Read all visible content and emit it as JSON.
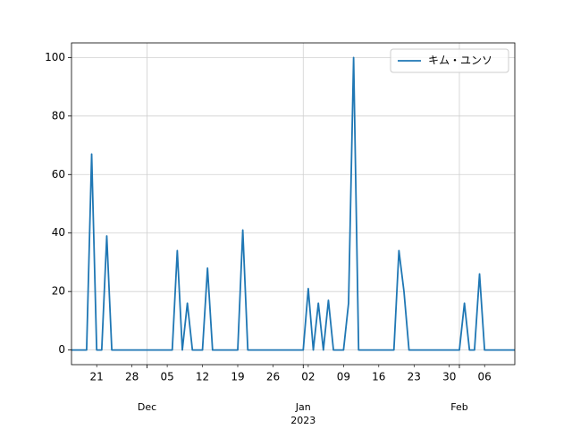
{
  "chart_data": {
    "type": "line",
    "x": [
      0,
      1,
      2,
      3,
      4,
      5,
      6,
      7,
      8,
      9,
      10,
      11,
      12,
      13,
      14,
      15,
      16,
      17,
      18,
      19,
      20,
      21,
      22,
      23,
      24,
      25,
      26,
      27,
      28,
      29,
      30,
      31,
      32,
      33,
      34,
      35,
      36,
      37,
      38,
      39,
      40,
      41,
      42,
      43,
      44,
      45,
      46,
      47,
      48,
      49,
      50,
      51,
      52,
      53,
      54,
      55,
      56,
      57,
      58,
      59,
      60,
      61,
      62,
      63,
      64,
      65,
      66,
      67,
      68,
      69,
      70,
      71,
      72,
      73,
      74,
      75,
      76,
      77,
      78,
      79,
      80,
      81,
      82,
      83,
      84,
      85,
      86,
      87,
      88
    ],
    "series": [
      {
        "name": "キム・ユンソ",
        "color": "#1f77b4",
        "values": [
          0,
          0,
          0,
          0,
          67,
          0,
          0,
          39,
          0,
          0,
          0,
          0,
          0,
          0,
          0,
          0,
          0,
          0,
          0,
          0,
          0,
          34,
          0,
          16,
          0,
          0,
          0,
          28,
          0,
          0,
          0,
          0,
          0,
          0,
          41,
          0,
          0,
          0,
          0,
          0,
          0,
          0,
          0,
          0,
          0,
          0,
          0,
          21,
          0,
          16,
          0,
          17,
          0,
          0,
          0,
          16,
          100,
          0,
          0,
          0,
          0,
          0,
          0,
          0,
          0,
          34,
          20,
          0,
          0,
          0,
          0,
          0,
          0,
          0,
          0,
          0,
          0,
          0,
          16,
          0,
          0,
          26,
          0,
          0,
          0,
          0,
          0,
          0,
          0
        ]
      }
    ],
    "xlim": [
      0,
      88
    ],
    "xticks": [
      {
        "value": 15,
        "label": "Dec"
      },
      {
        "value": 46,
        "label": "Jan"
      },
      {
        "value": 77,
        "label": "Feb"
      }
    ],
    "x_year_label": {
      "value": 46,
      "label": "2023"
    },
    "xticks_minor": [
      {
        "value": 5,
        "label": "21"
      },
      {
        "value": 12,
        "label": "28"
      },
      {
        "value": 19,
        "label": "05"
      },
      {
        "value": 26,
        "label": "12"
      },
      {
        "value": 33,
        "label": "19"
      },
      {
        "value": 40,
        "label": "26"
      },
      {
        "value": 47,
        "label": "02"
      },
      {
        "value": 54,
        "label": "09"
      },
      {
        "value": 61,
        "label": "16"
      },
      {
        "value": 68,
        "label": "23"
      },
      {
        "value": 75,
        "label": "30"
      },
      {
        "value": 82,
        "label": "06"
      }
    ],
    "ylim": [
      -5,
      105
    ],
    "yticks": [
      0,
      20,
      40,
      60,
      80,
      100
    ],
    "grid": true,
    "legend": "upper right"
  }
}
